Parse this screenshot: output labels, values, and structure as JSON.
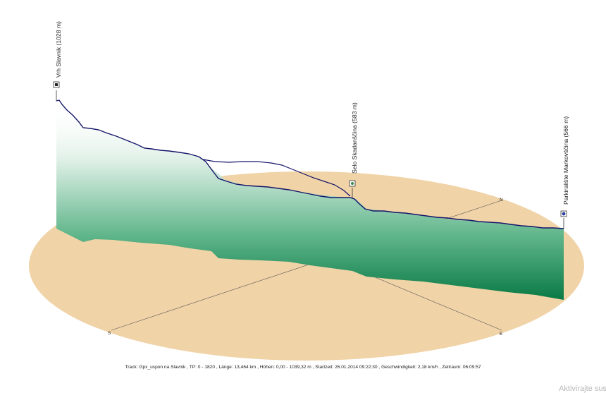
{
  "status_text": "Track: Gpx_uspon na Slavnik  ,  TP: 0 - 1820  ,  Länge: 13,464 km  ,  Höhen: 0,00 - 1039,32 m  ,  Startzeit: 26.01.2014 09:22:30  ,  Geschwindigkeit: 2,18 km/h  ,  Zeitraum: 06:09:57",
  "watermark_text": "Aktivirajte sust",
  "compass": {
    "north": "N",
    "east": "E",
    "south": "S"
  },
  "colors": {
    "ground": "#f0d3a7",
    "profile_dark": "#0a7a45",
    "profile_light": "#ffffff",
    "track_line": "#14146a"
  },
  "chart_data": {
    "type": "area",
    "view": "3d-elevation-profile",
    "series": [
      {
        "values": [
          1028,
          960,
          900,
          870,
          820,
          790,
          760,
          730,
          700,
          660,
          600,
          583,
          575,
          570,
          566
        ]
      }
    ],
    "waypoints": [
      {
        "name": "Vrh Slavnik (1028 m)",
        "elevation": 1028
      },
      {
        "name": "Selo Skadanščina (583 m)",
        "elevation": 583
      },
      {
        "name": "Parkiralište Markovščina (566 m)",
        "elevation": 566
      }
    ]
  }
}
